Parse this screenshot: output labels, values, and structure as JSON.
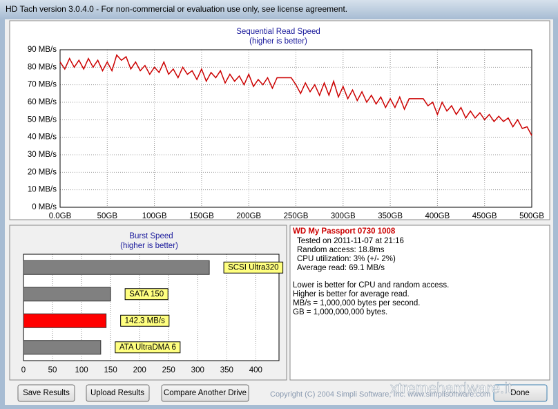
{
  "window": {
    "title": "HD Tach version 3.0.4.0  - For non-commercial or evaluation use only, see license agreement."
  },
  "chart_data": [
    {
      "type": "line",
      "title": "Sequential Read Speed",
      "subtitle": "(higher is better)",
      "color": "#cc0000",
      "x": [
        0,
        5,
        10,
        15,
        20,
        25,
        30,
        35,
        40,
        45,
        50,
        55,
        60,
        65,
        70,
        75,
        80,
        85,
        90,
        95,
        100,
        105,
        110,
        115,
        120,
        125,
        130,
        135,
        140,
        145,
        150,
        155,
        160,
        165,
        170,
        175,
        180,
        185,
        190,
        195,
        200,
        205,
        210,
        215,
        220,
        225,
        230,
        235,
        240,
        245,
        250,
        255,
        260,
        265,
        270,
        275,
        280,
        285,
        290,
        295,
        300,
        305,
        310,
        315,
        320,
        325,
        330,
        335,
        340,
        345,
        350,
        355,
        360,
        365,
        370,
        375,
        380,
        385,
        390,
        395,
        400,
        405,
        410,
        415,
        420,
        425,
        430,
        435,
        440,
        445,
        450,
        455,
        460,
        465,
        470,
        475,
        480,
        485,
        490,
        495,
        500
      ],
      "values": [
        83,
        79,
        85,
        80,
        84,
        79,
        85,
        80,
        84,
        78,
        83,
        78,
        87,
        84,
        86,
        79,
        83,
        78,
        81,
        76,
        80,
        77,
        83,
        76,
        79,
        74,
        80,
        76,
        78,
        73,
        79,
        72,
        77,
        74,
        78,
        71,
        76,
        72,
        75,
        70,
        76,
        69,
        73,
        70,
        74,
        68,
        74,
        74,
        74,
        74,
        70,
        65,
        71,
        66,
        70,
        64,
        71,
        64,
        72,
        63,
        69,
        62,
        67,
        61,
        66,
        60,
        64,
        59,
        63,
        57,
        62,
        57,
        63,
        56,
        62,
        62,
        62,
        62,
        58,
        60,
        53,
        60,
        55,
        58,
        53,
        57,
        51,
        55,
        51,
        54,
        50,
        53,
        49,
        52,
        49,
        51,
        46,
        50,
        45,
        46,
        41
      ],
      "xlim": [
        0,
        500
      ],
      "ylim": [
        0,
        90
      ],
      "grid": true,
      "xticks": [
        {
          "value": 0,
          "label": "0.0GB"
        },
        {
          "value": 50,
          "label": "50GB"
        },
        {
          "value": 100,
          "label": "100GB"
        },
        {
          "value": 150,
          "label": "150GB"
        },
        {
          "value": 200,
          "label": "200GB"
        },
        {
          "value": 250,
          "label": "250GB"
        },
        {
          "value": 300,
          "label": "300GB"
        },
        {
          "value": 350,
          "label": "350GB"
        },
        {
          "value": 400,
          "label": "400GB"
        },
        {
          "value": 450,
          "label": "450GB"
        },
        {
          "value": 500,
          "label": "500GB"
        }
      ],
      "yticks": [
        {
          "value": 0,
          "label": "0 MB/s"
        },
        {
          "value": 10,
          "label": "10 MB/s"
        },
        {
          "value": 20,
          "label": "20 MB/s"
        },
        {
          "value": 30,
          "label": "30 MB/s"
        },
        {
          "value": 40,
          "label": "40 MB/s"
        },
        {
          "value": 50,
          "label": "50 MB/s"
        },
        {
          "value": 60,
          "label": "60 MB/s"
        },
        {
          "value": 70,
          "label": "70 MB/s"
        },
        {
          "value": 80,
          "label": "80 MB/s"
        },
        {
          "value": 90,
          "label": "90 MB/s"
        }
      ]
    },
    {
      "type": "bar",
      "orientation": "horizontal",
      "title": "Burst Speed",
      "subtitle": "(higher is better)",
      "categories": [
        "SCSI Ultra320",
        "SATA 150",
        null,
        "ATA UltraDMA 6"
      ],
      "values": [
        320,
        150,
        142.3,
        133
      ],
      "value_labels": [
        null,
        null,
        "142.3 MB/s",
        null
      ],
      "colors": [
        "#808080",
        "#808080",
        "#ff0000",
        "#808080"
      ],
      "xlim": [
        0,
        440
      ],
      "xticks": [
        0,
        50,
        100,
        150,
        200,
        250,
        300,
        350,
        400
      ],
      "grid": true
    }
  ],
  "info": {
    "drive": "WD My Passport 0730 1008",
    "details": [
      "Tested on 2011-11-07 at 21:16",
      "Random access: 18.8ms",
      "CPU utilization: 3% (+/- 2%)",
      "Average read: 69.1 MB/s"
    ],
    "notes": [
      "Lower is better for CPU and random access.",
      "Higher is better for average read.",
      "MB/s = 1,000,000 bytes per second.",
      "GB = 1,000,000,000 bytes."
    ]
  },
  "buttons": [
    "Save Results",
    "Upload Results",
    "Compare Another Drive",
    "Done"
  ],
  "copyright": "Copyright (C) 2004 Simpli Software, Inc. www.simplisoftware.com",
  "watermark": "xtremehardware.it"
}
